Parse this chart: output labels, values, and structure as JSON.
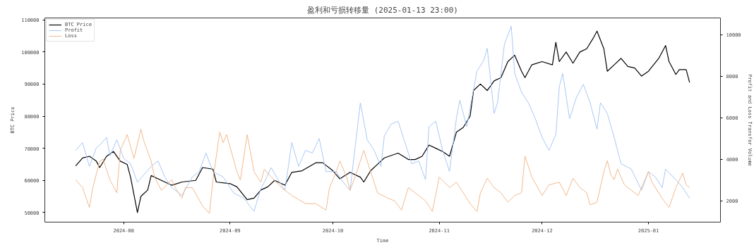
{
  "chart_data": {
    "type": "line",
    "title": "盈利和亏损转移量 (2025-01-13 23:00)",
    "xlabel": "Time",
    "ylabel": "BTC Price",
    "y2label": "Profit and Loss Transfer Volume",
    "xlim": [
      "2024-07-09",
      "2025-01-22"
    ],
    "xticks": [
      {
        "value": "2024-08-01",
        "label": "2024-08"
      },
      {
        "value": "2024-09-01",
        "label": "2024-09"
      },
      {
        "value": "2024-10-01",
        "label": "2024-10"
      },
      {
        "value": "2024-11-01",
        "label": "2024-11"
      },
      {
        "value": "2024-12-01",
        "label": "2024-12"
      },
      {
        "value": "2025-01-01",
        "label": "2025-01"
      }
    ],
    "ylim": [
      47000,
      110600
    ],
    "yticks": [
      50000,
      60000,
      70000,
      80000,
      90000,
      100000,
      110000
    ],
    "y2lim": [
      980,
      10800
    ],
    "y2ticks": [
      2000,
      4000,
      6000,
      8000,
      10000
    ],
    "grid": false,
    "legend": "top left",
    "line_style": "solid",
    "series": [
      {
        "name": "BTC Price",
        "color": "#000000",
        "x": [
          "2024-07-18",
          "2024-07-20",
          "2024-07-22",
          "2024-07-24",
          "2024-07-25",
          "2024-07-27",
          "2024-07-29",
          "2024-07-31",
          "2024-08-02",
          "2024-08-03",
          "2024-08-05",
          "2024-08-06",
          "2024-08-08",
          "2024-08-09",
          "2024-08-12",
          "2024-08-15",
          "2024-08-18",
          "2024-08-22",
          "2024-08-24",
          "2024-08-27",
          "2024-08-28",
          "2024-09-01",
          "2024-09-03",
          "2024-09-06",
          "2024-09-08",
          "2024-09-10",
          "2024-09-12",
          "2024-09-14",
          "2024-09-17",
          "2024-09-19",
          "2024-09-22",
          "2024-09-26",
          "2024-09-28",
          "2024-10-01",
          "2024-10-03",
          "2024-10-06",
          "2024-10-09",
          "2024-10-10",
          "2024-10-12",
          "2024-10-14",
          "2024-10-16",
          "2024-10-20",
          "2024-10-23",
          "2024-10-25",
          "2024-10-27",
          "2024-10-29",
          "2024-10-31",
          "2024-11-02",
          "2024-11-04",
          "2024-11-06",
          "2024-11-08",
          "2024-11-10",
          "2024-11-11",
          "2024-11-13",
          "2024-11-15",
          "2024-11-17",
          "2024-11-19",
          "2024-11-21",
          "2024-11-23",
          "2024-11-25",
          "2024-11-26",
          "2024-11-28",
          "2024-12-01",
          "2024-12-04",
          "2024-12-05",
          "2024-12-06",
          "2024-12-08",
          "2024-12-10",
          "2024-12-12",
          "2024-12-14",
          "2024-12-16",
          "2024-12-17",
          "2024-12-19",
          "2024-12-20",
          "2024-12-22",
          "2024-12-24",
          "2024-12-26",
          "2024-12-28",
          "2024-12-30",
          "2025-01-01",
          "2025-01-04",
          "2025-01-06",
          "2025-01-07",
          "2025-01-09",
          "2025-01-10",
          "2025-01-12",
          "2025-01-13"
        ],
        "values": [
          64500,
          67000,
          67500,
          66000,
          64000,
          67500,
          69000,
          66000,
          65000,
          61000,
          50000,
          55000,
          57000,
          61500,
          60000,
          58500,
          59500,
          60000,
          64000,
          63500,
          59500,
          59000,
          58000,
          54000,
          54500,
          57000,
          58000,
          60000,
          58500,
          62500,
          63000,
          65500,
          65500,
          63000,
          60500,
          62500,
          61000,
          59500,
          63000,
          65000,
          67000,
          68500,
          66500,
          66500,
          67500,
          71000,
          70000,
          69000,
          67500,
          75000,
          76500,
          80000,
          88000,
          90000,
          88000,
          91000,
          92000,
          97000,
          99000,
          94000,
          92000,
          96000,
          97000,
          96000,
          103000,
          97000,
          100000,
          96500,
          100000,
          101000,
          104500,
          106500,
          101000,
          94000,
          96000,
          98000,
          95500,
          95000,
          92500,
          94000,
          98000,
          102000,
          97000,
          93000,
          94500,
          94500,
          90500
        ]
      },
      {
        "name": "Profit",
        "color": "#a9c8f5",
        "axis": "y2",
        "x": [
          "2024-07-18",
          "2024-07-20",
          "2024-07-22",
          "2024-07-24",
          "2024-07-25",
          "2024-07-27",
          "2024-07-28",
          "2024-07-30",
          "2024-08-01",
          "2024-08-03",
          "2024-08-05",
          "2024-08-07",
          "2024-08-09",
          "2024-08-11",
          "2024-08-13",
          "2024-08-15",
          "2024-08-18",
          "2024-08-21",
          "2024-08-23",
          "2024-08-25",
          "2024-08-27",
          "2024-08-30",
          "2024-09-02",
          "2024-09-05",
          "2024-09-08",
          "2024-09-10",
          "2024-09-11",
          "2024-09-13",
          "2024-09-15",
          "2024-09-17",
          "2024-09-19",
          "2024-09-21",
          "2024-09-23",
          "2024-09-25",
          "2024-09-27",
          "2024-09-29",
          "2024-10-02",
          "2024-10-04",
          "2024-10-06",
          "2024-10-08",
          "2024-10-09",
          "2024-10-11",
          "2024-10-13",
          "2024-10-15",
          "2024-10-16",
          "2024-10-18",
          "2024-10-20",
          "2024-10-22",
          "2024-10-24",
          "2024-10-26",
          "2024-10-28",
          "2024-10-29",
          "2024-10-31",
          "2024-11-02",
          "2024-11-04",
          "2024-11-06",
          "2024-11-07",
          "2024-11-09",
          "2024-11-12",
          "2024-11-14",
          "2024-11-15",
          "2024-11-17",
          "2024-11-18",
          "2024-11-19",
          "2024-11-20",
          "2024-11-22",
          "2024-11-23",
          "2024-11-25",
          "2024-11-27",
          "2024-11-29",
          "2024-12-01",
          "2024-12-03",
          "2024-12-05",
          "2024-12-06",
          "2024-12-07",
          "2024-12-09",
          "2024-12-11",
          "2024-12-13",
          "2024-12-15",
          "2024-12-17",
          "2024-12-18",
          "2024-12-20",
          "2024-12-22",
          "2024-12-24",
          "2024-12-27",
          "2024-12-30",
          "2025-01-01",
          "2025-01-03",
          "2025-01-05",
          "2025-01-06",
          "2025-01-09",
          "2025-01-11",
          "2025-01-13"
        ],
        "values": [
          4430,
          4810,
          3660,
          4550,
          4680,
          5060,
          4170,
          4940,
          4040,
          3790,
          2900,
          3280,
          3660,
          3920,
          3150,
          2640,
          2260,
          3150,
          3410,
          4300,
          3410,
          3150,
          2390,
          2130,
          1500,
          2600,
          2900,
          3600,
          3020,
          2510,
          4810,
          3660,
          4430,
          4300,
          5000,
          3410,
          3410,
          2900,
          2510,
          5320,
          6720,
          4940,
          4430,
          3660,
          5130,
          5700,
          5830,
          4810,
          3790,
          3920,
          3020,
          5570,
          5830,
          4430,
          3410,
          5960,
          6850,
          5570,
          8250,
          8760,
          9340,
          6210,
          6720,
          8130,
          9530,
          10400,
          8130,
          7230,
          6720,
          5960,
          5060,
          4430,
          5190,
          7490,
          8130,
          5960,
          6980,
          7610,
          6720,
          5450,
          6720,
          6210,
          5060,
          3790,
          3530,
          2510,
          3410,
          3150,
          2640,
          3530,
          3020,
          2640,
          2130
        ]
      },
      {
        "name": "Loss",
        "color": "#f2b98e",
        "axis": "y2",
        "x": [
          "2024-07-18",
          "2024-07-20",
          "2024-07-22",
          "2024-07-23",
          "2024-07-25",
          "2024-07-26",
          "2024-07-28",
          "2024-07-30",
          "2024-07-31",
          "2024-08-02",
          "2024-08-04",
          "2024-08-06",
          "2024-08-07",
          "2024-08-09",
          "2024-08-10",
          "2024-08-12",
          "2024-08-15",
          "2024-08-16",
          "2024-08-18",
          "2024-08-19",
          "2024-08-21",
          "2024-08-24",
          "2024-08-26",
          "2024-08-27",
          "2024-08-29",
          "2024-08-30",
          "2024-08-31",
          "2024-09-03",
          "2024-09-04",
          "2024-09-06",
          "2024-09-08",
          "2024-09-10",
          "2024-09-11",
          "2024-09-13",
          "2024-09-16",
          "2024-09-19",
          "2024-09-23",
          "2024-09-26",
          "2024-09-29",
          "2024-09-30",
          "2024-10-02",
          "2024-10-03",
          "2024-10-05",
          "2024-10-06",
          "2024-10-08",
          "2024-10-10",
          "2024-10-12",
          "2024-10-14",
          "2024-10-17",
          "2024-10-19",
          "2024-10-21",
          "2024-10-23",
          "2024-10-25",
          "2024-10-28",
          "2024-10-30",
          "2024-11-01",
          "2024-11-04",
          "2024-11-06",
          "2024-11-08",
          "2024-11-10",
          "2024-11-12",
          "2024-11-13",
          "2024-11-15",
          "2024-11-17",
          "2024-11-19",
          "2024-11-21",
          "2024-11-23",
          "2024-11-25",
          "2024-11-26",
          "2024-11-28",
          "2024-12-01",
          "2024-12-03",
          "2024-12-06",
          "2024-12-08",
          "2024-12-10",
          "2024-12-12",
          "2024-12-14",
          "2024-12-15",
          "2024-12-17",
          "2024-12-19",
          "2024-12-20",
          "2024-12-21",
          "2024-12-22",
          "2024-12-23",
          "2024-12-25",
          "2024-12-26",
          "2024-12-29",
          "2025-01-01",
          "2025-01-02",
          "2025-01-05",
          "2025-01-07",
          "2025-01-09",
          "2025-01-11",
          "2025-01-12",
          "2025-01-13"
        ],
        "values": [
          3020,
          2640,
          1680,
          2640,
          3920,
          4000,
          3000,
          2390,
          4430,
          5190,
          4040,
          5450,
          4810,
          3920,
          3150,
          2510,
          3020,
          2640,
          2130,
          2640,
          2640,
          1750,
          1400,
          3000,
          5310,
          4800,
          5190,
          3410,
          3000,
          5190,
          3410,
          2900,
          3530,
          3150,
          2640,
          2260,
          1870,
          1870,
          1560,
          2640,
          3410,
          3920,
          3150,
          2510,
          3410,
          4430,
          3410,
          2390,
          2130,
          2000,
          1560,
          2640,
          2390,
          2000,
          1490,
          3150,
          2640,
          2900,
          2390,
          1870,
          1490,
          2390,
          3090,
          2640,
          2390,
          1940,
          2260,
          2390,
          4150,
          3150,
          2260,
          2770,
          2900,
          2260,
          3090,
          2640,
          2390,
          1810,
          1940,
          3410,
          3940,
          3280,
          3020,
          3530,
          2770,
          2640,
          2260,
          3410,
          2900,
          2130,
          1680,
          2640,
          3340,
          2770,
          2640
        ]
      }
    ]
  }
}
